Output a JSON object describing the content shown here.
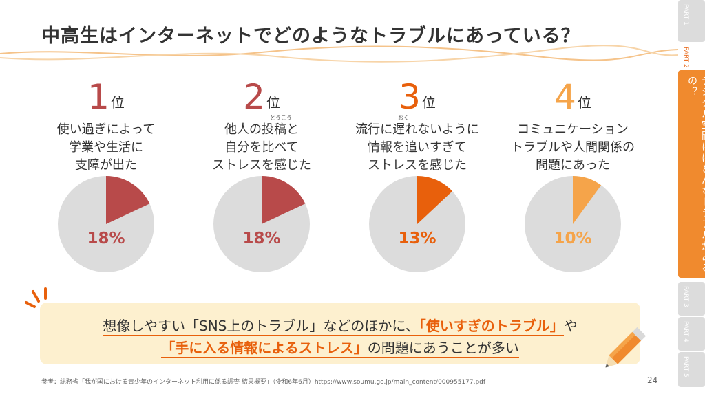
{
  "title": "中高生はインターネットでどのようなトラブルにあっている？",
  "rank_suffix": "位",
  "ranks": [
    {
      "number": "1",
      "description": "使い過ぎによって\n学業や生活に\n支障が出た",
      "percent_label": "18%",
      "percent": 18,
      "color": "#b84a4a"
    },
    {
      "number": "2",
      "description": "他人の投稿と\n自分を比べて\nストレスを感じた",
      "percent_label": "18%",
      "percent": 18,
      "color": "#b84a4a",
      "ruby": "とうこう"
    },
    {
      "number": "3",
      "description": "流行に遅れないように\n情報を追いすぎて\nストレスを感じた",
      "percent_label": "13%",
      "percent": 13,
      "color": "#e8600c",
      "ruby": "おく"
    },
    {
      "number": "4",
      "description": "コミュニケーション\nトラブルや人間関係の\n問題にあった",
      "percent_label": "10%",
      "percent": 10,
      "color": "#f5a44a"
    }
  ],
  "pie_background_color": "#dcdcdc",
  "callout": {
    "line1_a": "想像しやすい「SNS上のトラブル」などのほかに、",
    "line1_b": "「使いすぎのトラブル」",
    "line1_c": "や",
    "line2_a": "「手に入る情報によるストレス」",
    "line2_b": "の問題にあうことが多い"
  },
  "source": "参考：総務省「我が国における青少年のインターネット利用に係る調査 結果概要」（令和6年6月）https://www.soumu.go.jp/main_content/000955177.pdf",
  "page_number": "24",
  "sidebar": {
    "part1": "PART 1",
    "part2": "PART 2",
    "part2_title": "デジタル空間にはどんなトラブルがあるの？",
    "part3": "PART 3",
    "part4": "PART 4",
    "part5": "PART 5"
  },
  "colors": {
    "accent": "#e8600c",
    "sidebar_active": "#f08a2e",
    "callout_bg": "#fdf0cf"
  }
}
